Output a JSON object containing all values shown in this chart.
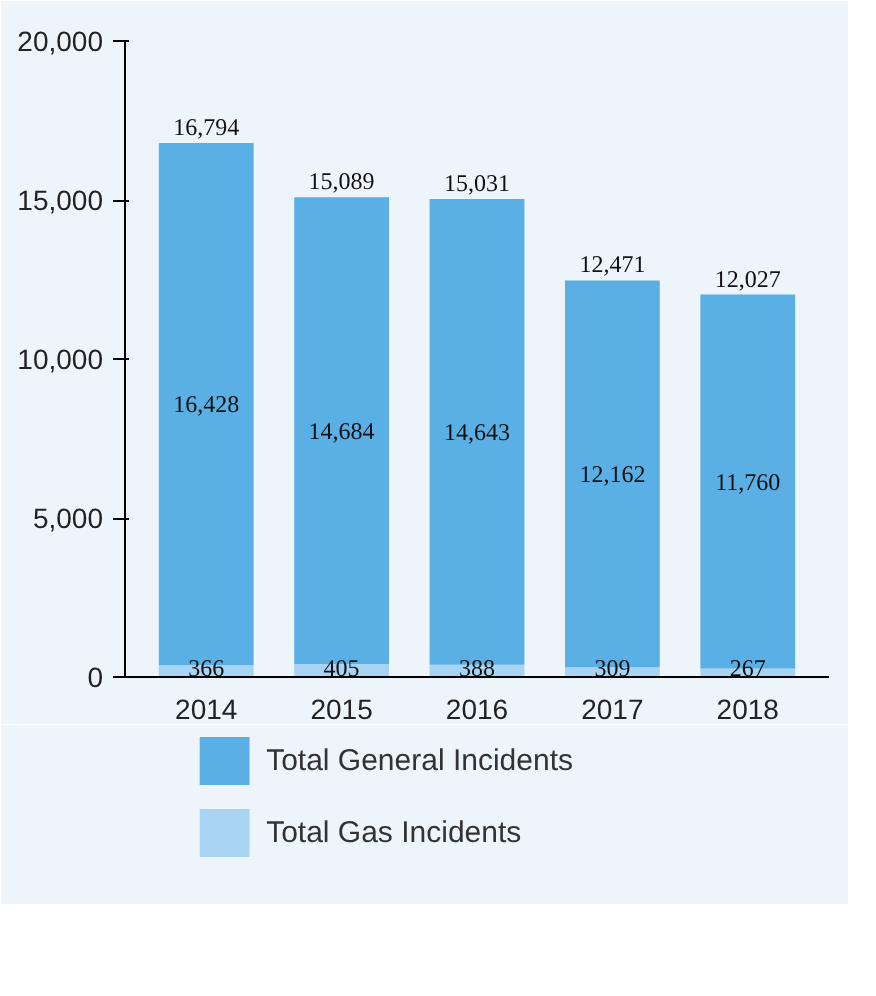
{
  "chart_data": {
    "type": "bar",
    "stacked": true,
    "categories": [
      "2014",
      "2015",
      "2016",
      "2017",
      "2018"
    ],
    "series": [
      {
        "name": "Total Gas Incidents",
        "color": "#a9d3f3",
        "values": [
          366,
          405,
          388,
          309,
          267
        ],
        "value_labels": [
          "366",
          "405",
          "388",
          "309",
          "267"
        ]
      },
      {
        "name": "Total General Incidents",
        "color": "#5aafe4",
        "values": [
          16428,
          14684,
          14643,
          12162,
          11760
        ],
        "value_labels": [
          "16,428",
          "14,684",
          "14,643",
          "12,162",
          "11,760"
        ]
      }
    ],
    "totals": [
      "16,794",
      "15,089",
      "15,031",
      "12,471",
      "12,027"
    ],
    "data_labels": true,
    "ylim": [
      0,
      20000
    ],
    "yticks": [
      {
        "value": 0,
        "label": "0"
      },
      {
        "value": 5000,
        "label": "5,000"
      },
      {
        "value": 10000,
        "label": "10,000"
      },
      {
        "value": 15000,
        "label": "15,000"
      },
      {
        "value": 20000,
        "label": "20,000"
      }
    ],
    "grid": false,
    "legend": "bottom"
  }
}
